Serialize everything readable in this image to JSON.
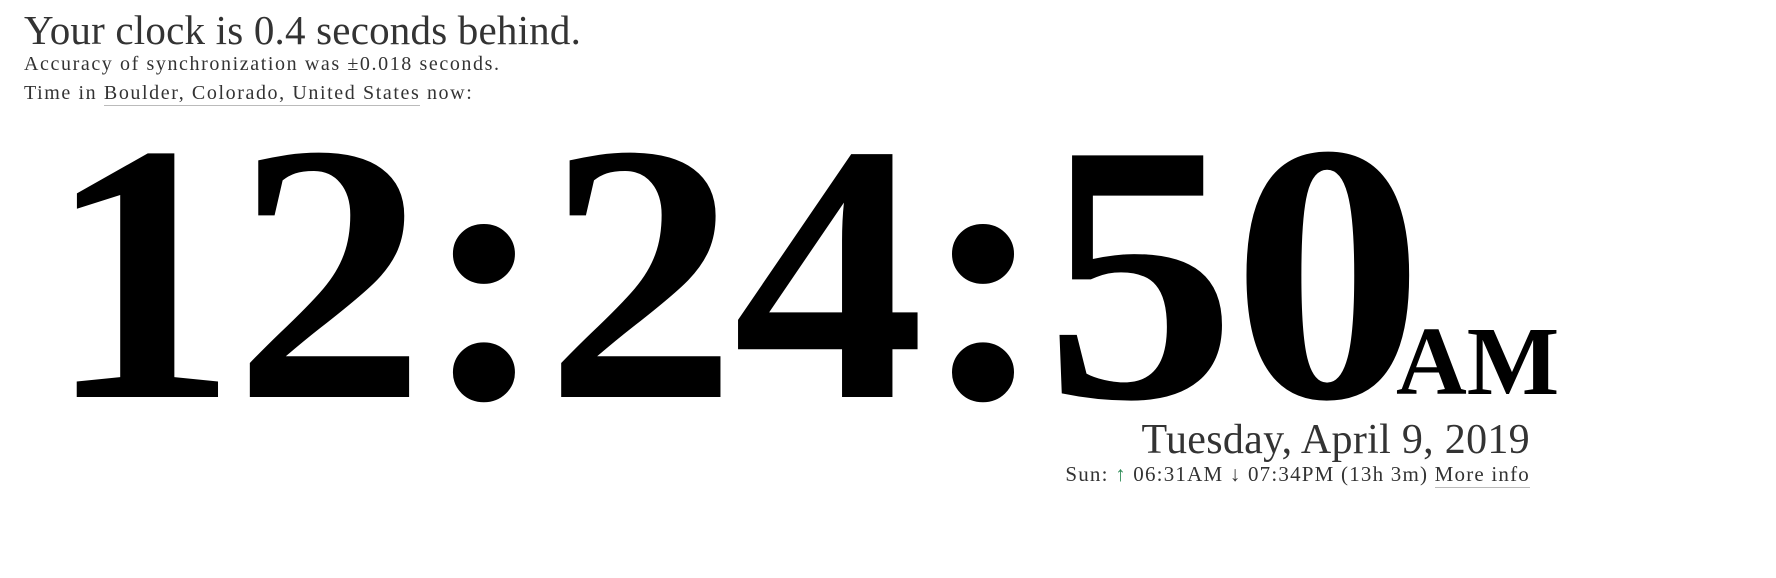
{
  "status": {
    "headline": "Your clock is 0.4 seconds behind.",
    "accuracy": "Accuracy of synchronization was ±0.018 seconds.",
    "location_prefix": "Time in ",
    "location_link": "Boulder, Colorado, United States",
    "location_suffix": " now:"
  },
  "clock": {
    "time": "12:24:50",
    "ampm": "AM",
    "date": "Tuesday, April 9, 2019"
  },
  "sun": {
    "label": "Sun: ",
    "sunrise_arrow": "↑",
    "sunrise": " 06:31AM ",
    "sunset_arrow": "↓",
    "sunset": " 07:34PM ",
    "day_length": "(13h 3m) ",
    "more_info": "More info"
  },
  "colors": {
    "sunrise_arrow": "#2e8b57",
    "clock_text": "#000000",
    "body_text": "#333333"
  }
}
